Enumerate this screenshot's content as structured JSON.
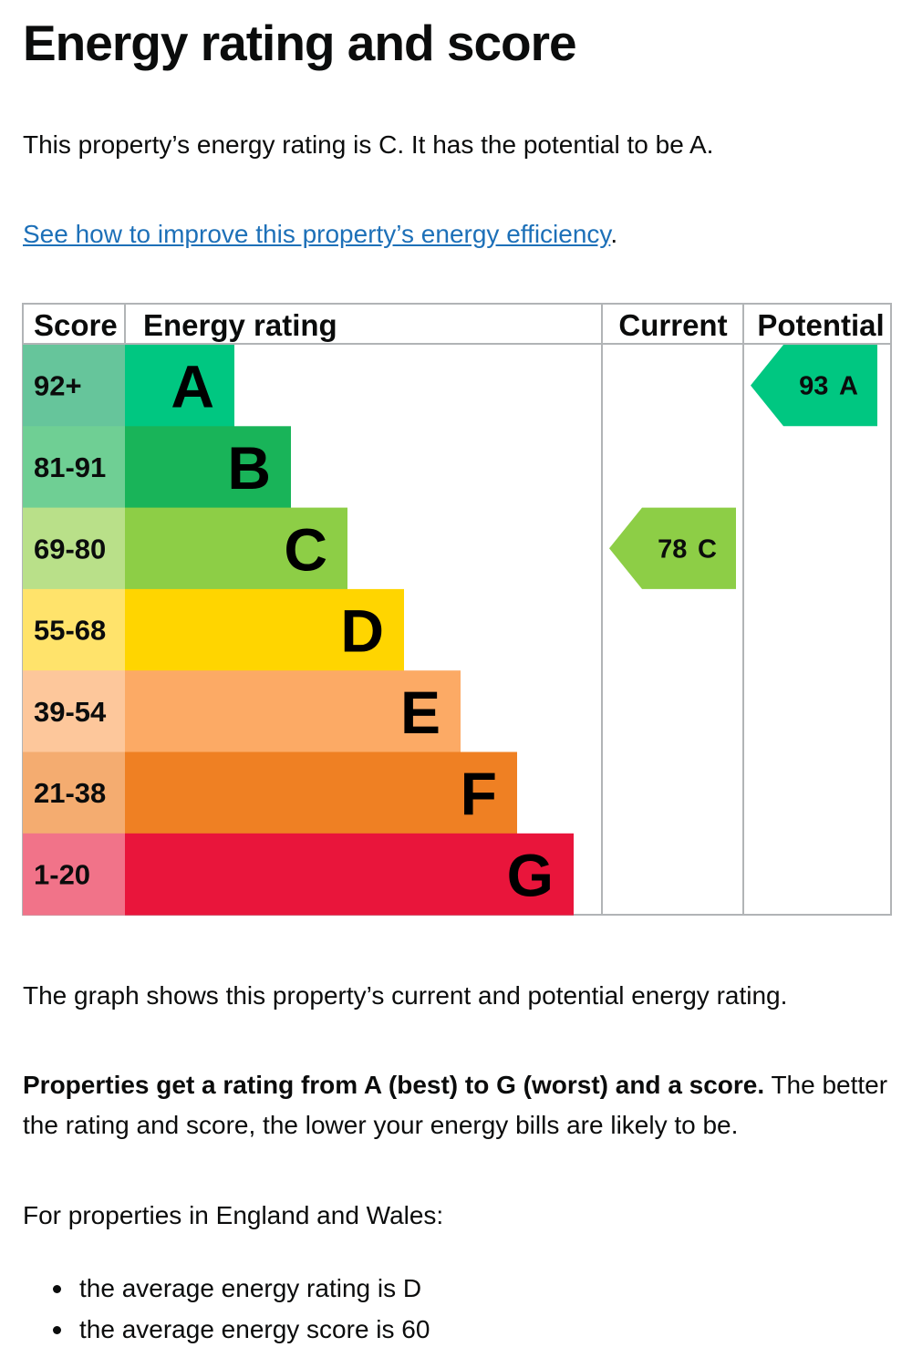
{
  "heading": "Energy rating and score",
  "intro": "This property’s energy rating is C. It has the potential to be A.",
  "improve_link": "See how to improve this property’s energy efficiency",
  "improve_link_suffix": ".",
  "chart_data": {
    "type": "bar",
    "columns": [
      "Score",
      "Energy rating",
      "Current",
      "Potential"
    ],
    "bands": [
      {
        "letter": "A",
        "score_range": "92+",
        "color": "#00c781",
        "score_color": "#66c59b"
      },
      {
        "letter": "B",
        "score_range": "81-91",
        "color": "#19b459",
        "score_color": "#6fcf94"
      },
      {
        "letter": "C",
        "score_range": "69-80",
        "color": "#8dce46",
        "score_color": "#b9e089"
      },
      {
        "letter": "D",
        "score_range": "55-68",
        "color": "#ffd500",
        "score_color": "#ffe36b"
      },
      {
        "letter": "E",
        "score_range": "39-54",
        "color": "#fcaa65",
        "score_color": "#fdc79b"
      },
      {
        "letter": "F",
        "score_range": "21-38",
        "color": "#ef8023",
        "score_color": "#f4ac70"
      },
      {
        "letter": "G",
        "score_range": "1-20",
        "color": "#e9153b",
        "score_color": "#f17389"
      }
    ],
    "current": {
      "score": 78,
      "band": "C",
      "label": "78 C"
    },
    "potential": {
      "score": 93,
      "band": "A",
      "label": "93 A"
    }
  },
  "graph_note": "The graph shows this property’s current and potential energy rating.",
  "rating_bold": "Properties get a rating from A (best) to G (worst) and a score.",
  "rating_rest": " The better the rating and score, the lower your energy bills are likely to be.",
  "average_intro": "For properties in England and Wales:",
  "average_items": [
    "the average energy rating is D",
    "the average energy score is 60"
  ]
}
